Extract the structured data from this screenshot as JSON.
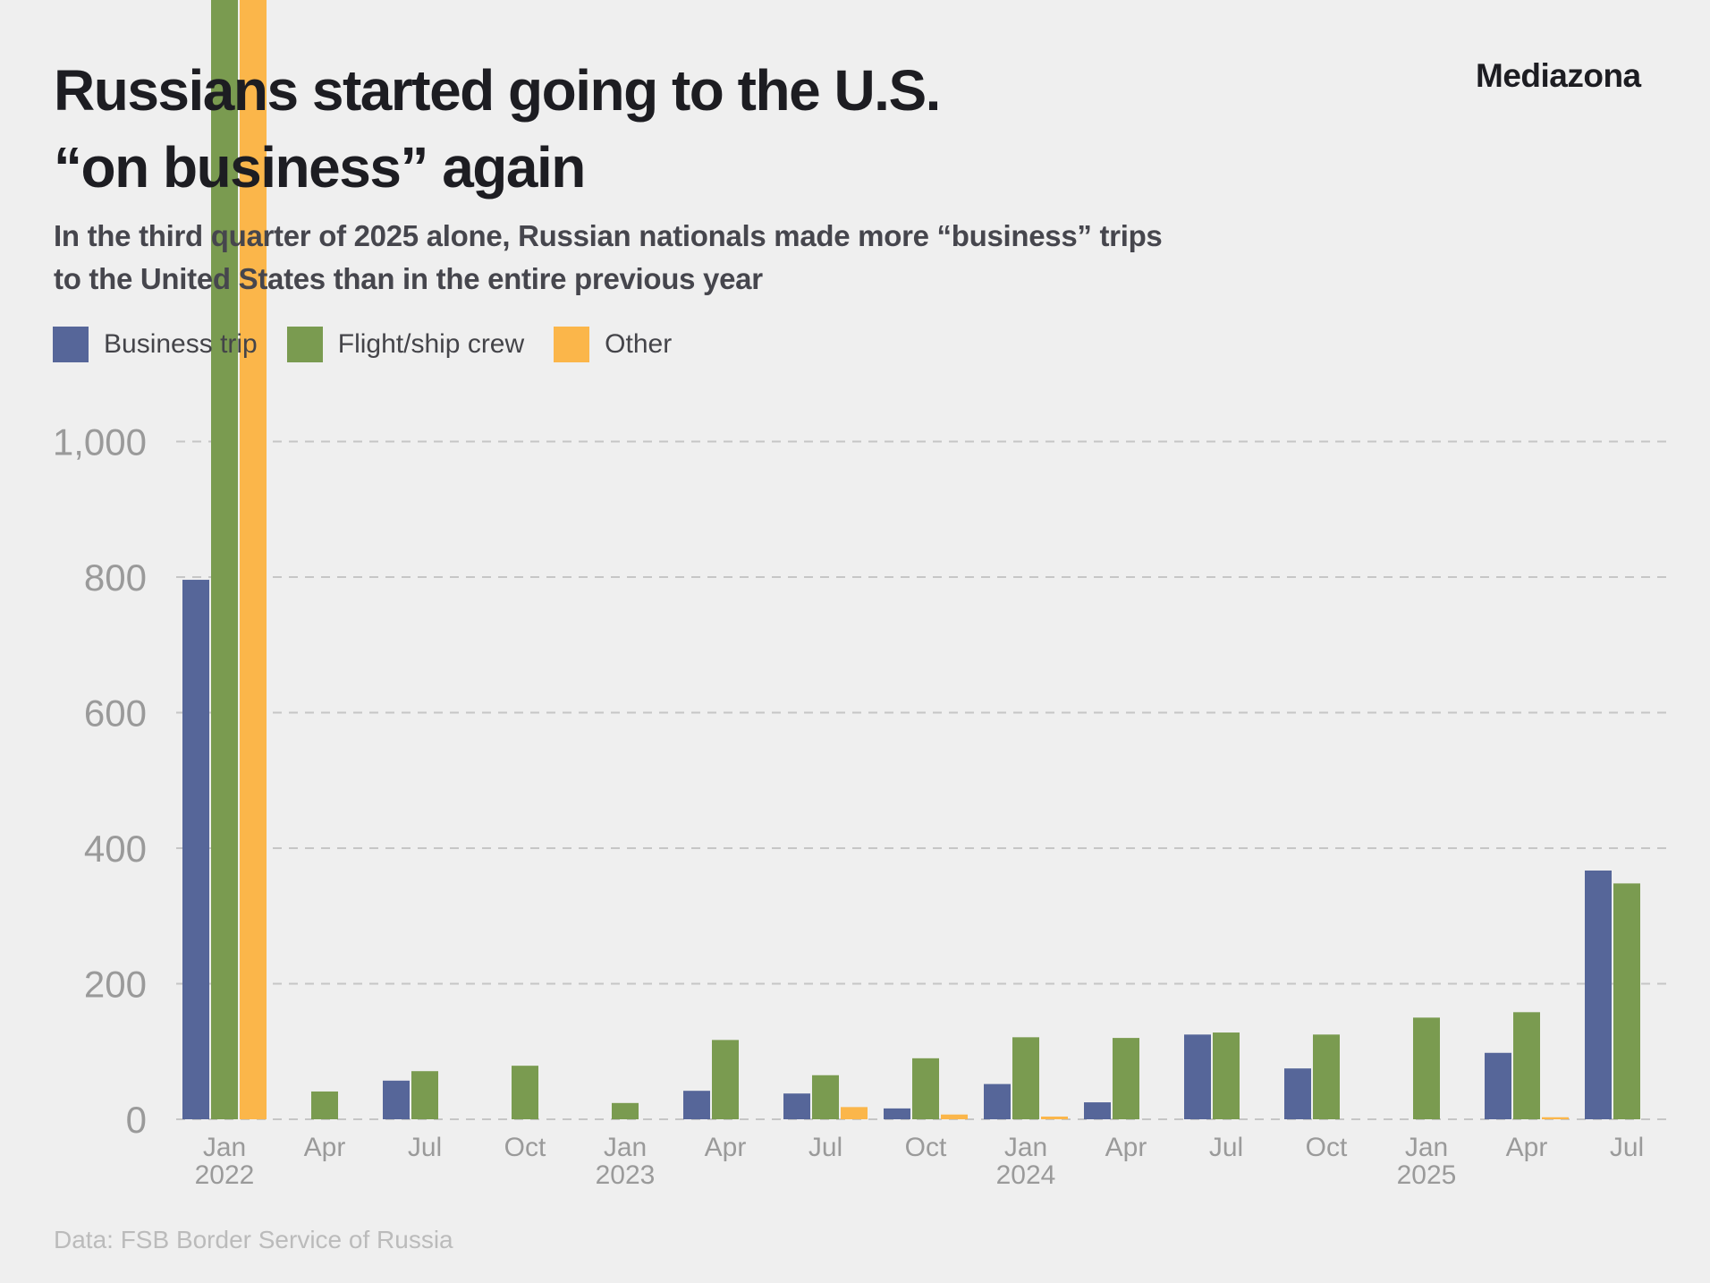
{
  "header": {
    "title_line1": "Russians started going to the U.S.",
    "title_line2": "“on business” again",
    "brand": "Mediazona",
    "subtitle_line1": "In the third quarter of 2025 alone, Russian nationals made more “business” trips",
    "subtitle_line2": "to the United States than in the entire previous year"
  },
  "legend": [
    {
      "label": "Business trip",
      "color": "#566699"
    },
    {
      "label": "Flight/ship crew",
      "color": "#7a9b50"
    },
    {
      "label": "Other",
      "color": "#fbb64a"
    }
  ],
  "footer": {
    "source": "Data: FSB Border Service of Russia"
  },
  "chart_data": {
    "type": "bar",
    "title": "Russians started going to the U.S. “on business” again",
    "subtitle": "In the third quarter of 2025 alone, Russian nationals made more “business” trips to the United States than in the entire previous year",
    "xlabel": "",
    "ylabel": "",
    "ylim": [
      0,
      1000
    ],
    "yticks": [
      0,
      200,
      400,
      600,
      800,
      1000
    ],
    "ytick_labels": [
      "0",
      "200",
      "400",
      "600",
      "800",
      "1,000"
    ],
    "grid": true,
    "legend_position": "top-left",
    "categories": [
      "Q1 2022",
      "Q2 2022",
      "Q3 2022",
      "Q4 2022",
      "Q1 2023",
      "Q2 2023",
      "Q3 2023",
      "Q4 2023",
      "Q1 2024",
      "Q2 2024",
      "Q3 2024",
      "Q4 2024",
      "Q1 2025",
      "Q2 2025",
      "Q3 2025"
    ],
    "x_tick_labels": [
      {
        "month": "Jan",
        "year": "2022"
      },
      {
        "month": "Apr",
        "year": ""
      },
      {
        "month": "Jul",
        "year": ""
      },
      {
        "month": "Oct",
        "year": ""
      },
      {
        "month": "Jan",
        "year": "2023"
      },
      {
        "month": "Apr",
        "year": ""
      },
      {
        "month": "Jul",
        "year": ""
      },
      {
        "month": "Oct",
        "year": ""
      },
      {
        "month": "Jan",
        "year": "2024"
      },
      {
        "month": "Apr",
        "year": ""
      },
      {
        "month": "Jul",
        "year": ""
      },
      {
        "month": "Oct",
        "year": ""
      },
      {
        "month": "Jan",
        "year": "2025"
      },
      {
        "month": "Apr",
        "year": ""
      },
      {
        "month": "Jul",
        "year": ""
      }
    ],
    "series": [
      {
        "name": "Business trip",
        "color": "#566699",
        "values": [
          796,
          0,
          57,
          0,
          0,
          42,
          38,
          16,
          52,
          25,
          125,
          75,
          0,
          98,
          367
        ]
      },
      {
        "name": "Flight/ship crew",
        "color": "#7a9b50",
        "values": [
          1660,
          41,
          71,
          79,
          24,
          117,
          65,
          90,
          121,
          120,
          128,
          125,
          150,
          158,
          348
        ]
      },
      {
        "name": "Other",
        "color": "#fbb64a",
        "values": [
          1660,
          0,
          0,
          0,
          0,
          0,
          18,
          7,
          4,
          0,
          0,
          0,
          0,
          3,
          0
        ]
      }
    ],
    "annotations": [
      "Q1 2022 Flight/ship crew and Other bars extend beyond the top of the figure (values exceed ~1,650)"
    ]
  }
}
